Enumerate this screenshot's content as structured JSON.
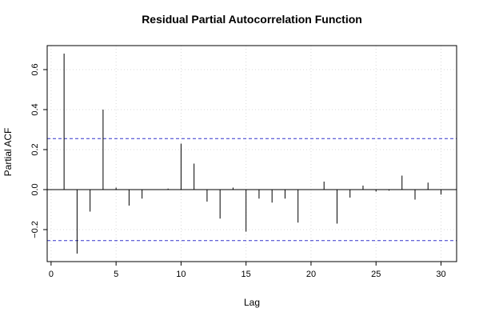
{
  "chart_data": {
    "type": "bar",
    "title": "Residual Partial Autocorrelation Function",
    "xlabel": "Lag",
    "ylabel": "Partial ACF",
    "xlim": [
      -0.3,
      31.2
    ],
    "ylim": [
      -0.36,
      0.72
    ],
    "x_ticks": [
      0,
      5,
      10,
      15,
      20,
      25,
      30
    ],
    "y_ticks": [
      -0.2,
      0.0,
      0.2,
      0.4,
      0.6
    ],
    "y_tick_labels": [
      "−0.2",
      "0.0",
      "0.2",
      "0.4",
      "0.6"
    ],
    "confidence_bounds": [
      0.255,
      -0.255
    ],
    "grid": true,
    "lags": [
      1,
      2,
      3,
      4,
      5,
      6,
      7,
      8,
      9,
      10,
      11,
      12,
      13,
      14,
      15,
      16,
      17,
      18,
      19,
      20,
      21,
      22,
      23,
      24,
      25,
      26,
      27,
      28,
      29,
      30
    ],
    "values": [
      0.68,
      -0.32,
      -0.11,
      0.4,
      0.01,
      -0.08,
      -0.045,
      0.0,
      0.005,
      0.23,
      0.13,
      -0.06,
      -0.145,
      0.01,
      -0.21,
      -0.045,
      -0.065,
      -0.045,
      -0.165,
      0.0,
      0.04,
      -0.17,
      -0.04,
      0.02,
      -0.01,
      -0.005,
      0.07,
      -0.05,
      0.035,
      -0.025
    ],
    "colors": {
      "bars": "#000000",
      "bounds": "#3333cc",
      "grid": "#d9d9d9",
      "axis": "#000000"
    }
  }
}
